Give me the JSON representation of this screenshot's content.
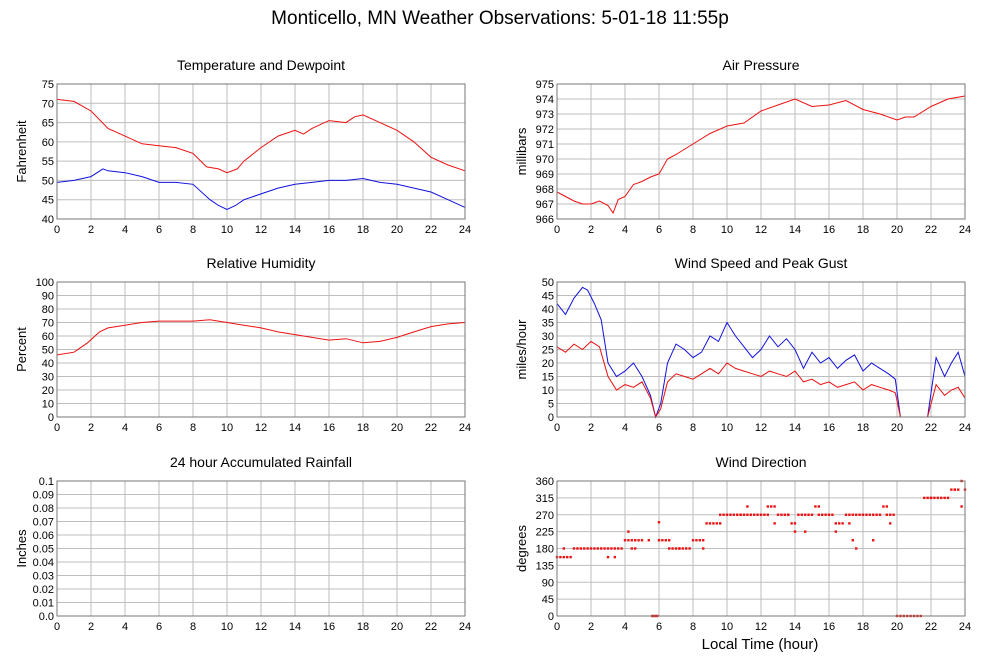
{
  "title": "Monticello, MN Weather Observations: 5-01-18 11:55p",
  "xlabel_bottom": "Local Time (hour)",
  "colors": {
    "red": "#ee1111",
    "blue": "#1111dd",
    "grid": "#bdbdbd",
    "frame": "#777777"
  },
  "chart_data": [
    {
      "id": "temp",
      "type": "line",
      "title": "Temperature and Dewpoint",
      "ylabel": "Fahrenheit",
      "xlim": [
        0,
        24
      ],
      "ylim": [
        40,
        75
      ],
      "xticks": [
        0,
        2,
        4,
        6,
        8,
        10,
        12,
        14,
        16,
        18,
        20,
        22,
        24
      ],
      "yticks": [
        40,
        45,
        50,
        55,
        60,
        65,
        70,
        75
      ],
      "grid": true,
      "series": [
        {
          "color": "red",
          "x": [
            0,
            1,
            2,
            3,
            4,
            5,
            6,
            7,
            8,
            8.8,
            9.5,
            10,
            10.6,
            11,
            12,
            13,
            14,
            14.5,
            15,
            16,
            17,
            17.5,
            18,
            19,
            20,
            21,
            22,
            23,
            24
          ],
          "y": [
            71,
            70.5,
            68,
            63.5,
            61.5,
            59.5,
            59,
            58.5,
            57,
            53.5,
            53,
            52,
            53,
            55,
            58.5,
            61.5,
            63,
            62,
            63.5,
            65.5,
            65,
            66.5,
            67,
            65,
            63,
            60,
            56,
            54,
            52.5
          ]
        },
        {
          "color": "blue",
          "x": [
            0,
            1,
            2,
            2.7,
            3,
            4,
            5,
            6,
            7,
            8,
            9,
            9.5,
            10,
            10.5,
            11,
            12,
            13,
            14,
            15,
            16,
            17,
            18,
            19,
            20,
            21,
            22,
            23,
            24
          ],
          "y": [
            49.5,
            50,
            51,
            53,
            52.5,
            52,
            51,
            49.5,
            49.5,
            49,
            45,
            43.5,
            42.5,
            43.5,
            45,
            46.5,
            48,
            49,
            49.5,
            50,
            50,
            50.5,
            49.5,
            49,
            48,
            47,
            45,
            43
          ]
        }
      ]
    },
    {
      "id": "pressure",
      "type": "line",
      "title": "Air Pressure",
      "ylabel": "millibars",
      "xlim": [
        0,
        24
      ],
      "ylim": [
        966,
        975
      ],
      "xticks": [
        0,
        2,
        4,
        6,
        8,
        10,
        12,
        14,
        16,
        18,
        20,
        22,
        24
      ],
      "yticks": [
        966,
        967,
        968,
        969,
        970,
        971,
        972,
        973,
        974,
        975
      ],
      "grid": true,
      "series": [
        {
          "color": "red",
          "x": [
            0,
            0.5,
            1,
            1.5,
            2,
            2.5,
            3,
            3.3,
            3.6,
            4,
            4.5,
            5,
            5.5,
            6,
            6.5,
            7,
            8,
            9,
            10,
            11,
            12,
            13,
            14,
            15,
            16,
            17,
            18,
            19,
            20,
            20.5,
            21,
            22,
            23,
            24
          ],
          "y": [
            967.8,
            967.5,
            967.2,
            967.0,
            967.0,
            967.2,
            966.9,
            966.4,
            967.3,
            967.5,
            968.3,
            968.5,
            968.8,
            969.0,
            970.0,
            970.3,
            971.0,
            971.7,
            972.2,
            972.4,
            973.2,
            973.6,
            974.0,
            973.5,
            973.6,
            973.9,
            973.3,
            973.0,
            972.6,
            972.8,
            972.8,
            973.5,
            974.0,
            974.2
          ]
        }
      ]
    },
    {
      "id": "humidity",
      "type": "line",
      "title": "Relative Humidity",
      "ylabel": "Percent",
      "xlim": [
        0,
        24
      ],
      "ylim": [
        0,
        100
      ],
      "xticks": [
        0,
        2,
        4,
        6,
        8,
        10,
        12,
        14,
        16,
        18,
        20,
        22,
        24
      ],
      "yticks": [
        0,
        10,
        20,
        30,
        40,
        50,
        60,
        70,
        80,
        90,
        100
      ],
      "grid": true,
      "series": [
        {
          "color": "red",
          "x": [
            0,
            1,
            1.8,
            2.5,
            3,
            4,
            5,
            6,
            7,
            8,
            9,
            10,
            11,
            12,
            13,
            14,
            15,
            16,
            17,
            18,
            19,
            20,
            21,
            22,
            23,
            24
          ],
          "y": [
            46,
            48,
            55,
            63,
            66,
            68,
            70,
            71,
            71,
            71,
            72,
            70,
            68,
            66,
            63,
            61,
            59,
            57,
            58,
            55,
            56,
            59,
            63,
            67,
            69,
            70
          ]
        }
      ]
    },
    {
      "id": "wind",
      "type": "line",
      "title": "Wind Speed and Peak Gust",
      "ylabel": "miles/hour",
      "xlim": [
        0,
        24
      ],
      "ylim": [
        0,
        50
      ],
      "xticks": [
        0,
        2,
        4,
        6,
        8,
        10,
        12,
        14,
        16,
        18,
        20,
        22,
        24
      ],
      "yticks": [
        0,
        5,
        10,
        15,
        20,
        25,
        30,
        35,
        40,
        45,
        50
      ],
      "grid": true,
      "series": [
        {
          "color": "blue",
          "x": [
            0,
            0.5,
            1,
            1.5,
            1.8,
            2.2,
            2.6,
            3,
            3.5,
            4,
            4.5,
            5,
            5.5,
            5.8,
            6.1,
            6.5,
            7,
            7.5,
            8,
            8.5,
            9,
            9.5,
            10,
            10.5,
            11,
            11.5,
            12,
            12.5,
            13,
            13.5,
            14,
            14.5,
            15,
            15.5,
            16,
            16.5,
            17,
            17.5,
            18,
            18.5,
            19,
            19.5,
            19.9,
            20.2,
            21,
            21.4,
            21.8,
            22.3,
            22.8,
            23.2,
            23.6,
            24
          ],
          "y": [
            42,
            38,
            44,
            48,
            47,
            42,
            36,
            20,
            15,
            17,
            20,
            15,
            8,
            0,
            5,
            20,
            27,
            25,
            22,
            24,
            30,
            28,
            35,
            30,
            26,
            22,
            25,
            30,
            26,
            29,
            25,
            18,
            24,
            20,
            22,
            18,
            21,
            23,
            17,
            20,
            18,
            16,
            14,
            0,
            0,
            0,
            0,
            22,
            15,
            20,
            24,
            15
          ]
        },
        {
          "color": "red",
          "x": [
            0,
            0.5,
            1,
            1.5,
            2,
            2.5,
            3,
            3.5,
            4,
            4.5,
            5,
            5.5,
            5.8,
            6.1,
            6.5,
            7,
            7.5,
            8,
            8.5,
            9,
            9.5,
            10,
            10.5,
            11,
            11.5,
            12,
            12.5,
            13,
            13.5,
            14,
            14.5,
            15,
            15.5,
            16,
            16.5,
            17,
            17.5,
            18,
            18.5,
            19,
            19.5,
            19.9,
            20.2,
            21,
            21.4,
            21.8,
            22.3,
            22.8,
            23.2,
            23.6,
            24
          ],
          "y": [
            26,
            24,
            27,
            25,
            28,
            26,
            15,
            10,
            12,
            11,
            13,
            7,
            0,
            3,
            13,
            16,
            15,
            14,
            16,
            18,
            16,
            20,
            18,
            17,
            16,
            15,
            17,
            16,
            15,
            17,
            13,
            14,
            12,
            13,
            11,
            12,
            13,
            10,
            12,
            11,
            10,
            9,
            0,
            0,
            0,
            0,
            12,
            8,
            10,
            11,
            7
          ]
        }
      ]
    },
    {
      "id": "rain",
      "type": "line",
      "title": "24 hour Accumulated Rainfall",
      "ylabel": "Inches",
      "xlim": [
        0,
        24
      ],
      "ylim": [
        0,
        0.1
      ],
      "xticks": [
        0,
        2,
        4,
        6,
        8,
        10,
        12,
        14,
        16,
        18,
        20,
        22,
        24
      ],
      "yticks": [
        0.0,
        0.01,
        0.02,
        0.03,
        0.04,
        0.05,
        0.06,
        0.07,
        0.08,
        0.09,
        0.1
      ],
      "ytick_labels": [
        "0.0",
        "0.01",
        "0.02",
        "0.03",
        "0.04",
        "0.05",
        "0.06",
        "0.07",
        "0.08",
        "0.09",
        "0.1"
      ],
      "grid": true,
      "series": [
        {
          "color": "red",
          "x": [
            0,
            24
          ],
          "y": [
            0,
            0
          ]
        }
      ]
    },
    {
      "id": "direction",
      "type": "scatter",
      "title": "Wind Direction",
      "ylabel": "degrees",
      "xlim": [
        0,
        24
      ],
      "ylim": [
        0,
        360
      ],
      "xticks": [
        0,
        2,
        4,
        6,
        8,
        10,
        12,
        14,
        16,
        18,
        20,
        22,
        24
      ],
      "yticks": [
        0,
        45,
        90,
        135,
        180,
        225,
        270,
        315,
        360
      ],
      "grid": true,
      "series": [
        {
          "color": "red",
          "x": [
            0,
            0.2,
            0.4,
            0.6,
            0.8,
            1.0,
            1.2,
            1.4,
            1.6,
            1.8,
            2.0,
            2.2,
            2.4,
            2.6,
            2.8,
            3.0,
            3.2,
            3.4,
            3.6,
            3.8,
            4.0,
            4.2,
            4.4,
            4.6,
            4.8,
            5.0,
            5.4,
            5.6,
            5.8,
            6.0,
            6.2,
            6.4,
            6.6,
            6.8,
            7.0,
            7.2,
            7.4,
            7.6,
            7.8,
            8.0,
            8.2,
            8.4,
            8.6,
            8.8,
            9.0,
            9.2,
            9.4,
            9.6,
            9.8,
            10.0,
            10.2,
            10.4,
            10.6,
            10.8,
            11.0,
            11.2,
            11.4,
            11.6,
            11.8,
            12.0,
            12.2,
            12.4,
            12.6,
            12.8,
            13.0,
            13.2,
            13.4,
            13.6,
            13.8,
            14.0,
            14.2,
            14.4,
            14.6,
            14.8,
            15.0,
            15.2,
            15.4,
            15.6,
            15.8,
            16.0,
            16.2,
            16.4,
            16.6,
            16.8,
            17.0,
            17.2,
            17.4,
            17.6,
            17.8,
            18.0,
            18.2,
            18.4,
            18.6,
            18.8,
            19.0,
            19.2,
            19.4,
            19.6,
            19.8,
            20.0,
            20.2,
            20.4,
            20.6,
            20.8,
            21.0,
            21.2,
            21.4,
            21.6,
            21.8,
            22.0,
            22.2,
            22.4,
            22.6,
            22.8,
            23.0,
            23.2,
            23.4,
            23.6,
            23.8,
            24.0,
            0.4,
            3.0,
            3.4,
            4.2,
            4.4,
            4.6,
            5.7,
            5.9,
            6.0,
            6.6,
            7.2,
            8.6,
            9.6,
            10.8,
            11.2,
            12.4,
            12.8,
            13.6,
            14.0,
            14.6,
            15.4,
            16.4,
            17.2,
            17.6,
            17.4,
            18.6,
            19.6,
            23.4,
            23.8,
            19.4,
            22.0
          ],
          "y": [
            157,
            157,
            157,
            157,
            157,
            180,
            180,
            180,
            180,
            180,
            180,
            180,
            180,
            180,
            180,
            180,
            180,
            180,
            180,
            180,
            202,
            202,
            202,
            202,
            202,
            202,
            202,
            0,
            0,
            202,
            202,
            202,
            180,
            180,
            180,
            180,
            180,
            180,
            180,
            202,
            202,
            202,
            202,
            247,
            247,
            247,
            247,
            270,
            270,
            270,
            270,
            270,
            270,
            270,
            270,
            270,
            270,
            270,
            270,
            270,
            270,
            270,
            292,
            292,
            270,
            270,
            270,
            270,
            247,
            247,
            270,
            270,
            270,
            270,
            270,
            292,
            270,
            270,
            270,
            270,
            270,
            247,
            247,
            247,
            270,
            270,
            270,
            270,
            270,
            270,
            270,
            270,
            270,
            270,
            270,
            292,
            292,
            270,
            270,
            0,
            0,
            0,
            0,
            0,
            0,
            0,
            0,
            315,
            315,
            315,
            315,
            315,
            315,
            315,
            315,
            337,
            337,
            337,
            360,
            337,
            180,
            157,
            157,
            225,
            180,
            180,
            0,
            0,
            250,
            202,
            180,
            180,
            247,
            270,
            292,
            292,
            247,
            270,
            225,
            225,
            292,
            225,
            247,
            180,
            202,
            202,
            247,
            337,
            292,
            270,
            315
          ]
        }
      ]
    }
  ]
}
